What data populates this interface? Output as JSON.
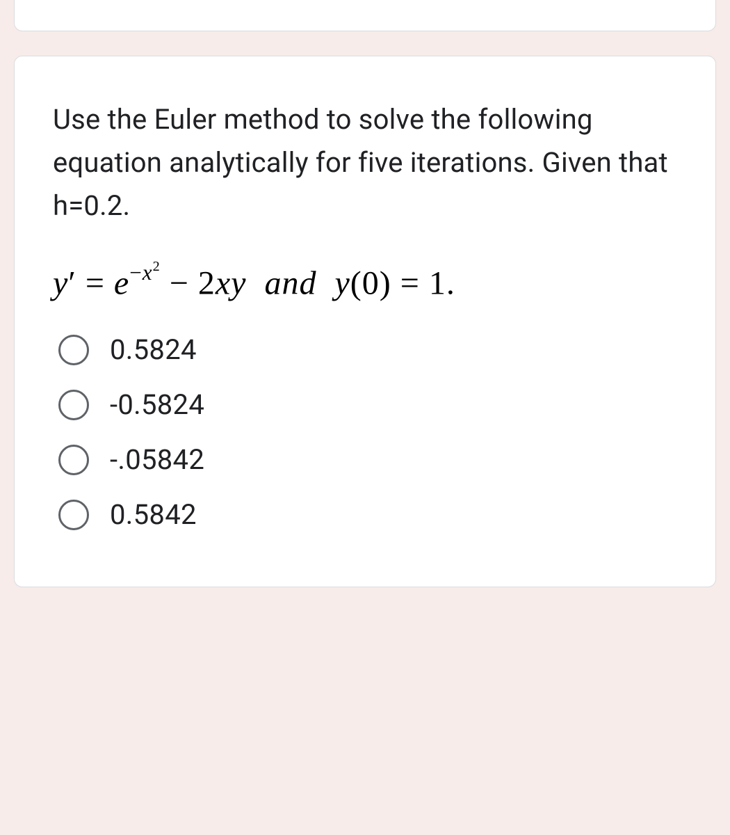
{
  "page": {
    "background_color": "#f7ece9",
    "card_background": "#ffffff",
    "card_border_color": "#dadce0",
    "text_color": "#202124",
    "radio_border_color": "#5f6368"
  },
  "question": {
    "prompt": "Use the Euler method to solve the following equation analytically for five iterations. Given that h=0.2.",
    "prompt_fontsize": 40,
    "equation_fontsize": 48,
    "equation_font": "Times New Roman"
  },
  "options": [
    {
      "value": "0.5824"
    },
    {
      "value": "-0.5824"
    },
    {
      "value": "-.05842"
    },
    {
      "value": "0.5842"
    }
  ]
}
